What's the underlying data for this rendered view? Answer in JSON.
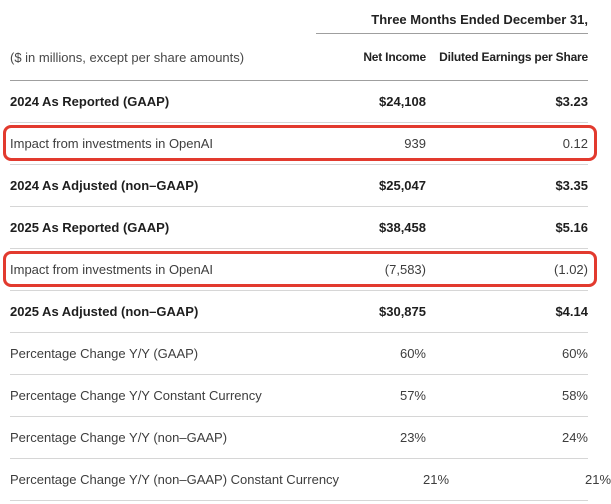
{
  "chart_data": {
    "type": "table",
    "title": "Three Months Ended December 31,",
    "note": "($ in millions, except per share amounts)",
    "columns": [
      "Net Income",
      "Diluted Earnings per Share"
    ],
    "rows": [
      {
        "label": "2024 As Reported (GAAP)",
        "net_income": "$24,108",
        "diluted_eps": "$3.23",
        "bold": true,
        "highlighted": false
      },
      {
        "label": "Impact from investments in OpenAI",
        "net_income": "939",
        "diluted_eps": "0.12",
        "bold": false,
        "highlighted": true
      },
      {
        "label": "2024 As Adjusted (non–GAAP)",
        "net_income": "$25,047",
        "diluted_eps": "$3.35",
        "bold": true,
        "highlighted": false
      },
      {
        "label": "2025 As Reported (GAAP)",
        "net_income": "$38,458",
        "diluted_eps": "$5.16",
        "bold": true,
        "highlighted": false
      },
      {
        "label": "Impact from investments in OpenAI",
        "net_income": "(7,583)",
        "diluted_eps": "(1.02)",
        "bold": false,
        "highlighted": true
      },
      {
        "label": "2025 As Adjusted (non–GAAP)",
        "net_income": "$30,875",
        "diluted_eps": "$4.14",
        "bold": true,
        "highlighted": false
      },
      {
        "label": "Percentage Change Y/Y (GAAP)",
        "net_income": "60%",
        "diluted_eps": "60%",
        "bold": false,
        "highlighted": false
      },
      {
        "label": "Percentage Change Y/Y Constant Currency",
        "net_income": "57%",
        "diluted_eps": "58%",
        "bold": false,
        "highlighted": false
      },
      {
        "label": "Percentage Change Y/Y (non–GAAP)",
        "net_income": "23%",
        "diluted_eps": "24%",
        "bold": false,
        "highlighted": false
      },
      {
        "label": "Percentage Change Y/Y (non–GAAP) Constant Currency",
        "net_income": "21%",
        "diluted_eps": "21%",
        "bold": false,
        "highlighted": false
      }
    ],
    "highlight_color": "#e23a2e"
  }
}
